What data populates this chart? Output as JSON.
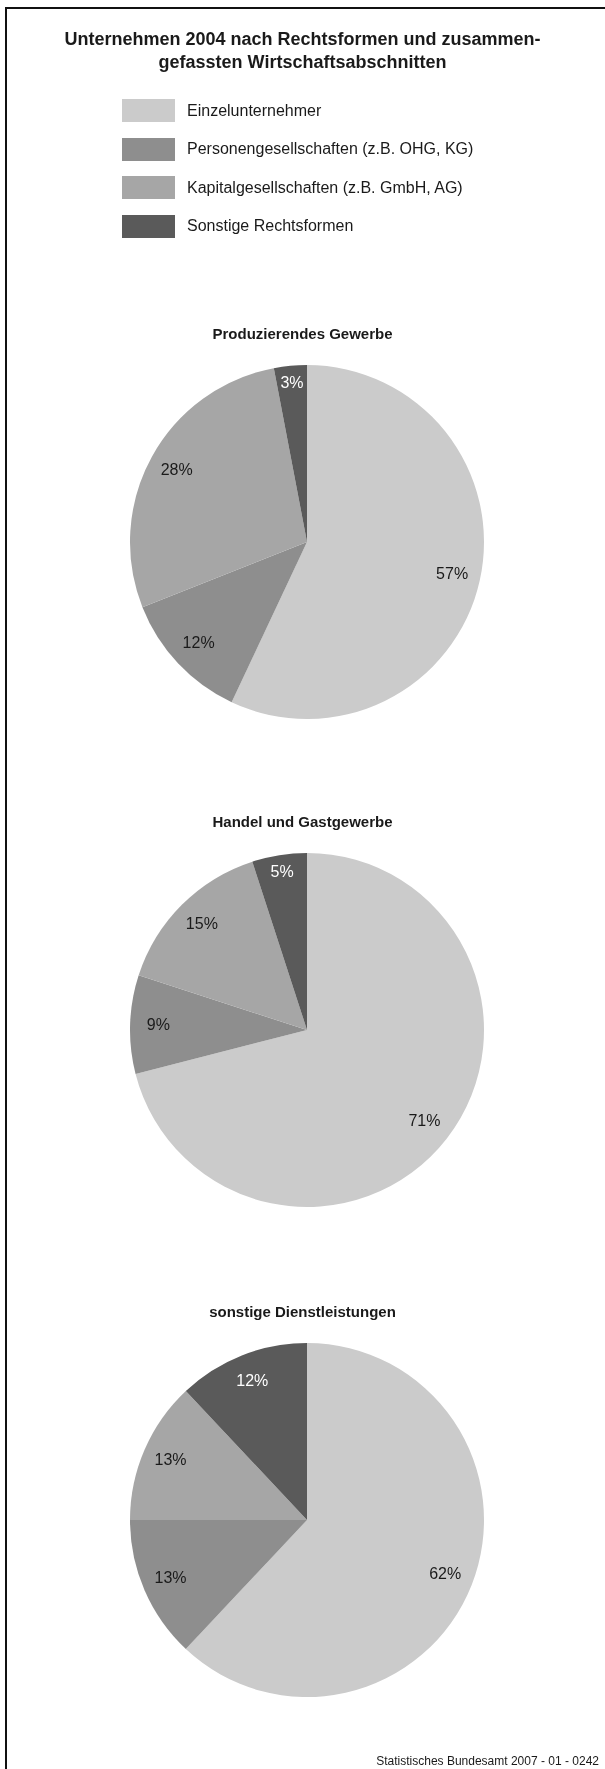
{
  "chart_data": [
    {
      "type": "pie",
      "title": "Unternehmen 2004 nach Rechtsformen und zusammen-\ngefassten Wirtschaftsabschnitten",
      "subtitle": "Produzierendes Gewerbe",
      "categories": [
        "Einzelunternehmer",
        "Personengesellschaften (z.B. OHG, KG)",
        "Kapitalgesellschaften (z.B. GmbH, AG)",
        "Sonstige Rechtsformen"
      ],
      "values": [
        57,
        12,
        28,
        3
      ],
      "colors": [
        "#cbcbcb",
        "#8e8e8e",
        "#a6a6a6",
        "#5a5a5a"
      ],
      "value_labels": [
        "57%",
        "12%",
        "28%",
        "3%"
      ],
      "legend": "top"
    },
    {
      "type": "pie",
      "title": "Handel und Gastgewerbe",
      "categories": [
        null,
        null,
        null,
        null
      ],
      "values": [
        71,
        9,
        15,
        5
      ],
      "colors": [
        "#cbcbcb",
        "#8e8e8e",
        "#a6a6a6",
        "#5a5a5a"
      ],
      "value_labels": [
        "71%",
        "9%",
        "15%",
        "5%"
      ]
    },
    {
      "type": "pie",
      "title": "sonstige Dienstleistungen",
      "categories": [
        null,
        null,
        null,
        null
      ],
      "values": [
        62,
        13,
        13,
        12
      ],
      "colors": [
        "#cbcbcb",
        "#8e8e8e",
        "#a6a6a6",
        "#5a5a5a"
      ],
      "value_labels": [
        "62%",
        "13%",
        "13%",
        "12%"
      ],
      "annotations": [
        "Statistisches Bundesamt 2007 - 01 - 0242"
      ]
    }
  ]
}
